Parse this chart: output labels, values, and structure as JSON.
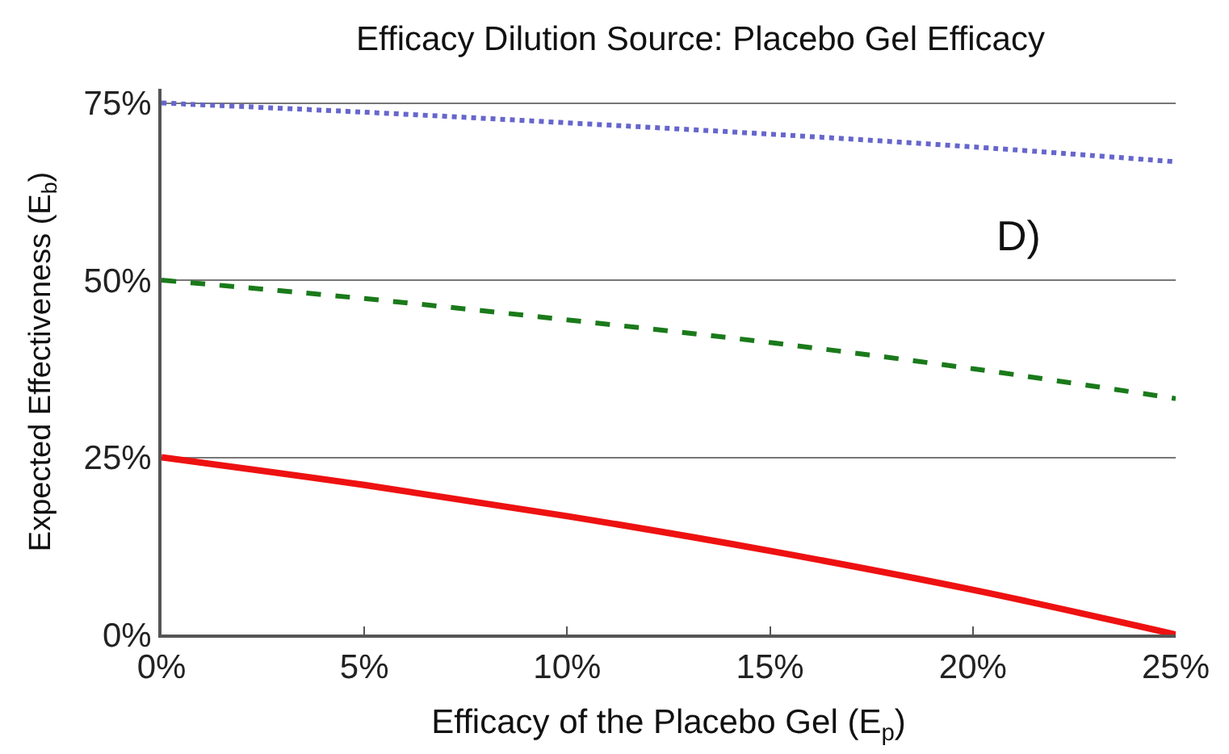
{
  "chart_data": {
    "type": "line",
    "title": "Efficacy Dilution Source: Placebo Gel Efficacy",
    "xlabel": "Efficacy of the Placebo Gel (E$_{p}$)",
    "ylabel": "Expected Effectiveness (E$_{b}$)",
    "x": [
      0,
      5,
      10,
      15,
      20,
      25
    ],
    "series": [
      {
        "color": "#6666cc",
        "line_style": "dotted",
        "values": [
          75,
          73.7,
          72.2,
          70.6,
          68.8,
          66.7
        ]
      },
      {
        "color": "#1a7a1a",
        "line_style": "dashed",
        "values": [
          50,
          47.4,
          44.4,
          41.2,
          37.5,
          33.3
        ]
      },
      {
        "color": "#ee1111",
        "line_style": "solid",
        "values": [
          25,
          21.1,
          16.7,
          11.8,
          6.3,
          0
        ]
      }
    ],
    "xlim": [
      0,
      25
    ],
    "ylim": [
      0,
      77
    ],
    "xticks": [
      {
        "value": 0,
        "label": "0%"
      },
      {
        "value": 5,
        "label": "5%"
      },
      {
        "value": 10,
        "label": "10%"
      },
      {
        "value": 15,
        "label": "15%"
      },
      {
        "value": 20,
        "label": "20%"
      },
      {
        "value": 25,
        "label": "25%"
      }
    ],
    "yticks": [
      {
        "value": 0,
        "label": "0%"
      },
      {
        "value": 25,
        "label": "25%"
      },
      {
        "value": 50,
        "label": "50%"
      },
      {
        "value": 75,
        "label": "75%"
      }
    ],
    "grid": "y",
    "marker": "none",
    "annotations": [
      "D)"
    ]
  }
}
